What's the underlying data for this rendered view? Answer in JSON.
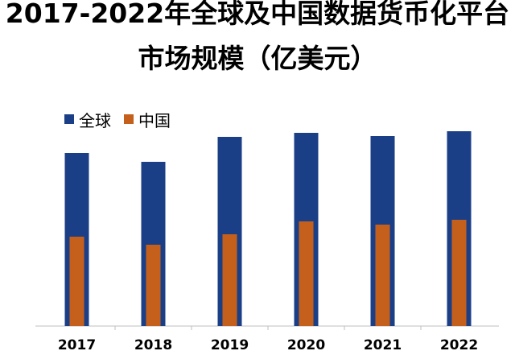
{
  "title": {
    "line1": "2017-2022年全球及中国数据货币化平台",
    "line2": "市场规模（亿美元）"
  },
  "colors": {
    "global": "#1b3f86",
    "china": "#c5601c",
    "axis": "#bfbfbf"
  },
  "chart_data": {
    "type": "bar",
    "categories": [
      "2017",
      "2018",
      "2019",
      "2020",
      "2021",
      "2022"
    ],
    "series": [
      {
        "name": "全球",
        "values": [
          215,
          204,
          235,
          240,
          236,
          242
        ]
      },
      {
        "name": "中国",
        "values": [
          111,
          101,
          114,
          130,
          126,
          132
        ]
      }
    ],
    "ylim": [
      0,
      250
    ],
    "grid": false,
    "legend": "top-left"
  }
}
